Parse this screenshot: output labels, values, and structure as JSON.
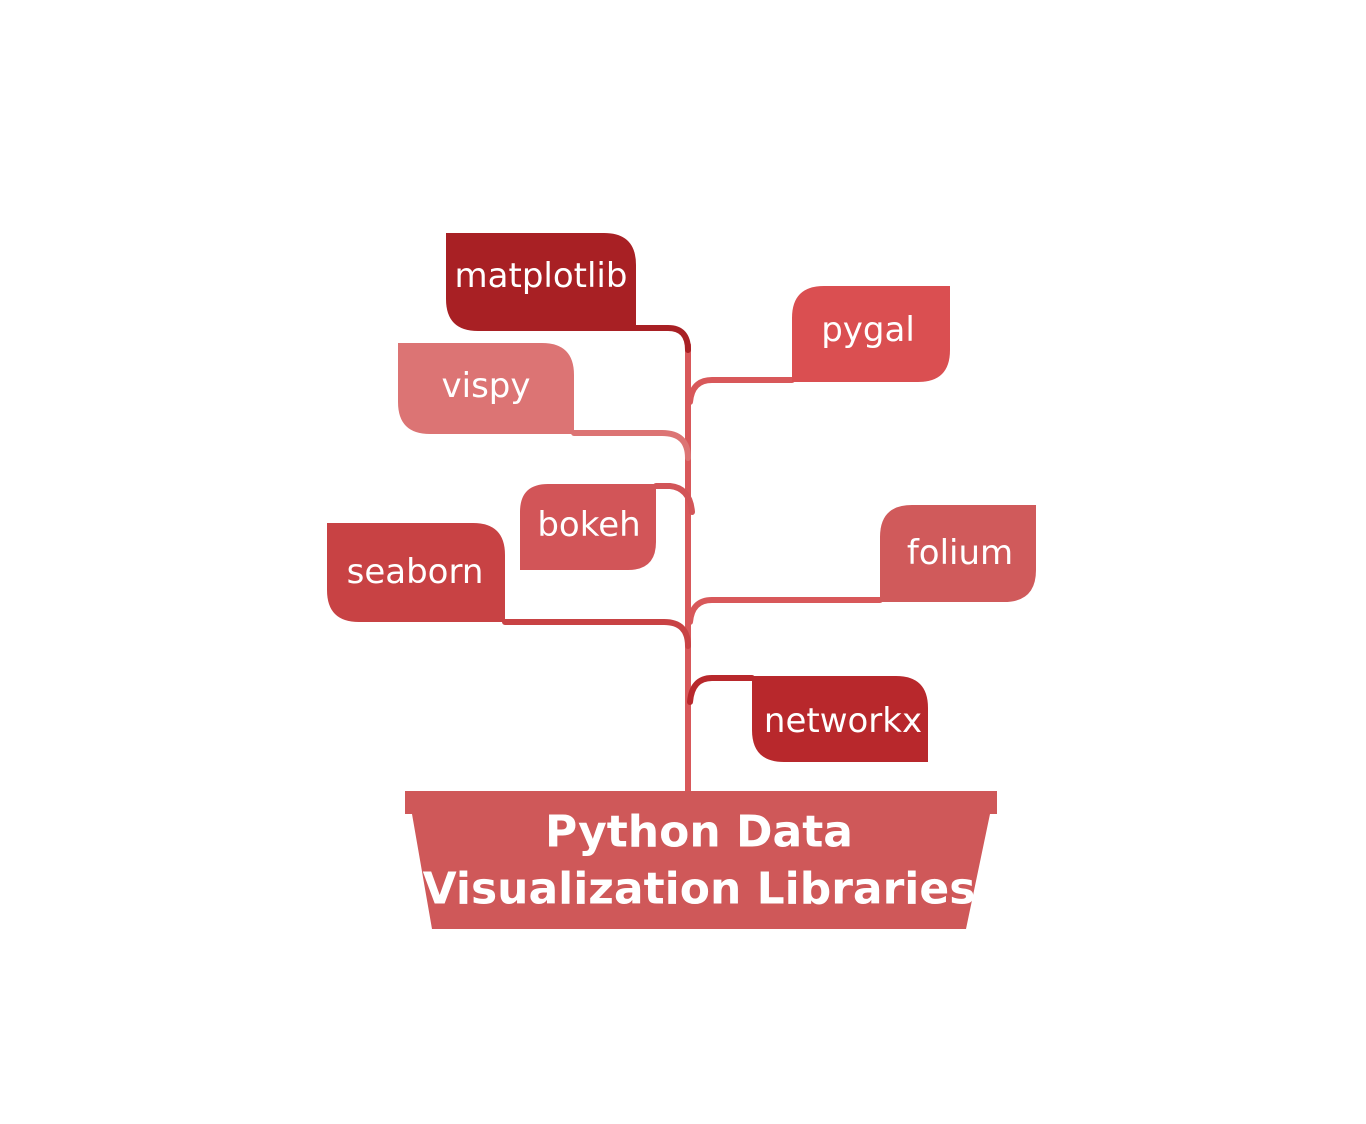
{
  "pot": {
    "line1": "Python Data",
    "line2": "Visualization Libraries",
    "color": "#cf5859"
  },
  "stem_color": "#d8585a",
  "leaves": {
    "matplotlib": {
      "label": "matplotlib",
      "color": "#a82024"
    },
    "pygal": {
      "label": "pygal",
      "color": "#da4f51"
    },
    "vispy": {
      "label": "vispy",
      "color": "#dc7474"
    },
    "bokeh": {
      "label": "bokeh",
      "color": "#d25558"
    },
    "seaborn": {
      "label": "seaborn",
      "color": "#c84244"
    },
    "folium": {
      "label": "folium",
      "color": "#d05a5b"
    },
    "networkx": {
      "label": "networkx",
      "color": "#b8282c"
    }
  }
}
